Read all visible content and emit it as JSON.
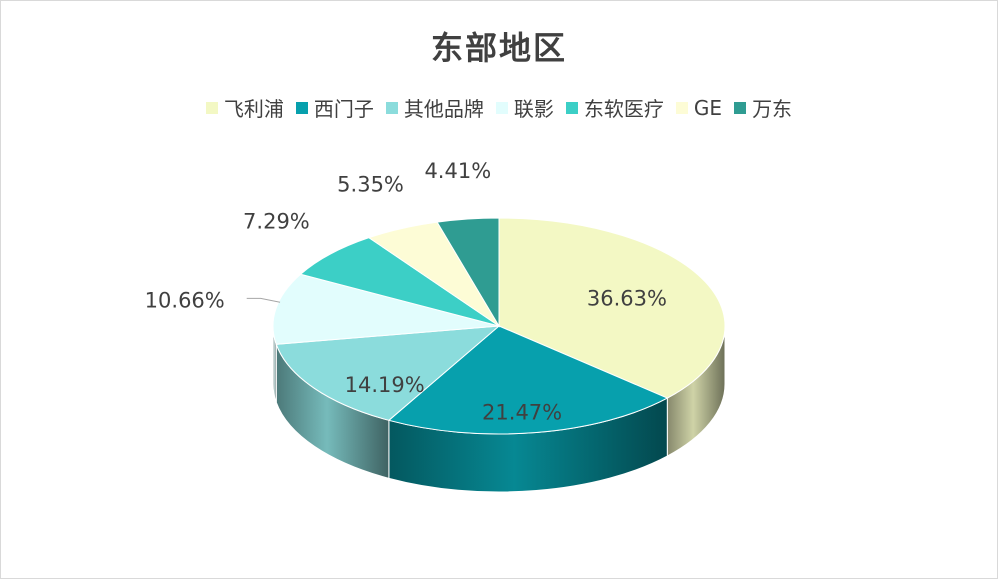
{
  "chart_data": {
    "type": "pie",
    "title": "东部地区",
    "legend_position": "top",
    "style": "3d",
    "slices": [
      {
        "name": "飞利浦",
        "value": 36.63,
        "label": "36.63%",
        "color": "#f3f8c4"
      },
      {
        "name": "西门子",
        "value": 21.47,
        "label": "21.47%",
        "color": "#07a0ad"
      },
      {
        "name": "其他品牌",
        "value": 14.19,
        "label": "14.19%",
        "color": "#8bdcdc"
      },
      {
        "name": "联影",
        "value": 10.66,
        "label": "10.66%",
        "color": "#e2fdfd"
      },
      {
        "name": "东软医疗",
        "value": 7.29,
        "label": "7.29%",
        "color": "#3ccfc6"
      },
      {
        "name": "GE",
        "value": 5.35,
        "label": "5.35%",
        "color": "#fdfcd6"
      },
      {
        "name": "万东",
        "value": 4.41,
        "label": "4.41%",
        "color": "#2f9c92"
      }
    ]
  }
}
